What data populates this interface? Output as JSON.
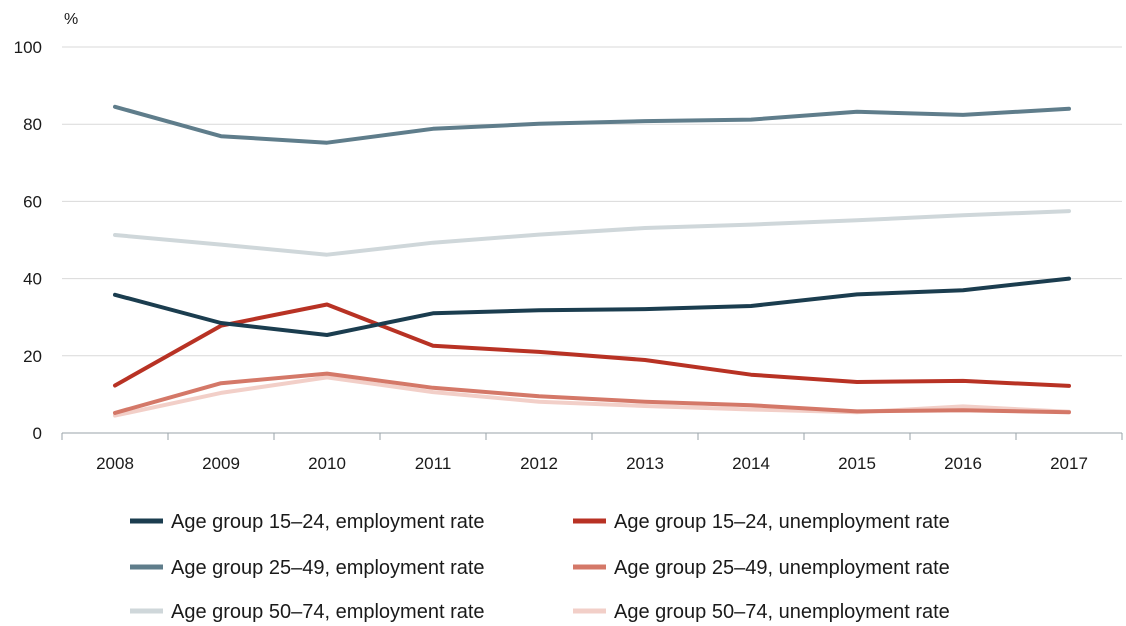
{
  "chart_data": {
    "type": "line",
    "ylabel": "%",
    "ylim": [
      0,
      100
    ],
    "yticks": [
      "0",
      "20",
      "40",
      "60",
      "80",
      "100"
    ],
    "categories": [
      "2008",
      "2009",
      "2010",
      "2011",
      "2012",
      "2013",
      "2014",
      "2015",
      "2016",
      "2017"
    ],
    "grid": "horizontal",
    "legend_position": "bottom",
    "series": [
      {
        "name": "Age group 15–24, employment rate",
        "color": "#1b3d4f",
        "values": [
          35.8,
          28.5,
          25.4,
          31.0,
          31.8,
          32.1,
          32.9,
          35.9,
          37.0,
          40.0
        ]
      },
      {
        "name": "Age group 15–24, unemployment rate",
        "color": "#b83224",
        "values": [
          12.3,
          27.8,
          33.3,
          22.6,
          21.0,
          18.9,
          15.1,
          13.2,
          13.5,
          12.2
        ]
      },
      {
        "name": "Age group 25–49, employment rate",
        "color": "#5f7d8b",
        "values": [
          84.5,
          76.9,
          75.2,
          78.8,
          80.1,
          80.8,
          81.2,
          83.2,
          82.4,
          84.0
        ]
      },
      {
        "name": "Age group 25–49, unemployment rate",
        "color": "#d47868",
        "values": [
          5.2,
          12.9,
          15.4,
          11.7,
          9.5,
          8.1,
          7.2,
          5.6,
          5.9,
          5.4
        ]
      },
      {
        "name": "Age group 50–74, employment rate",
        "color": "#cfd7da",
        "values": [
          51.3,
          48.8,
          46.2,
          49.3,
          51.4,
          53.1,
          54.0,
          55.1,
          56.4,
          57.5
        ]
      },
      {
        "name": "Age group 50–74, unemployment rate",
        "color": "#f2cfc8",
        "values": [
          4.5,
          10.4,
          14.4,
          10.6,
          8.1,
          7.0,
          6.1,
          5.4,
          6.9,
          5.5
        ]
      }
    ]
  }
}
